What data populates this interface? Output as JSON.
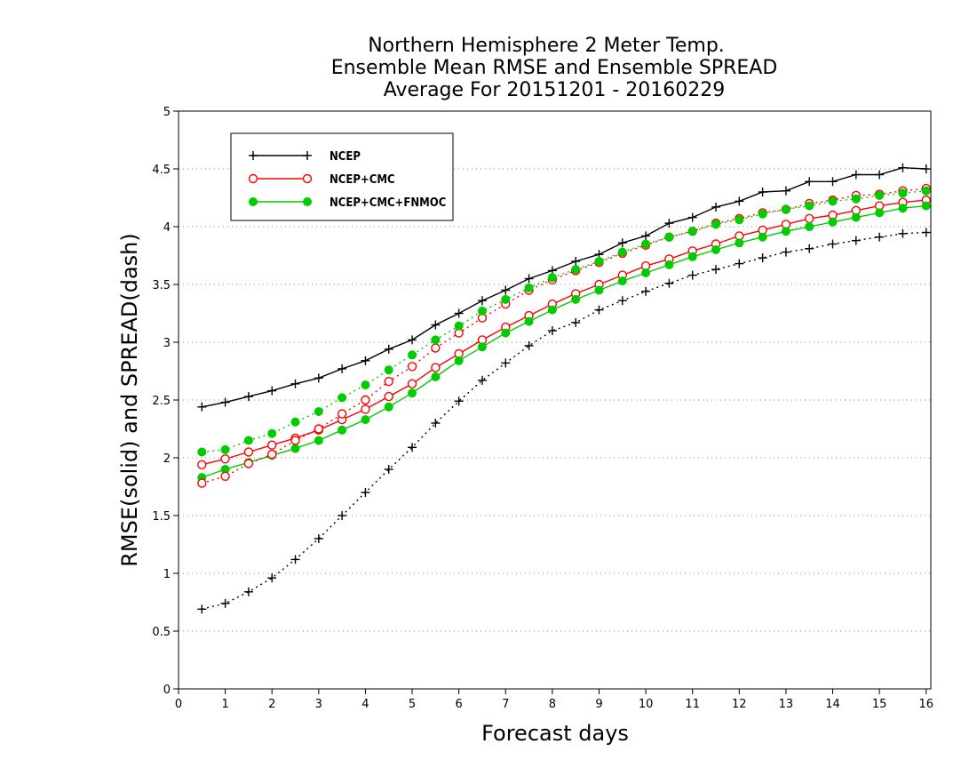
{
  "chart_data": {
    "type": "line",
    "title": [
      "Northern Hemisphere 2 Meter Temp.",
      "Ensemble Mean RMSE and Ensemble SPREAD",
      "Average For 20151201 - 20160229"
    ],
    "xlabel": "Forecast days",
    "ylabel": "RMSE(solid) and SPREAD(dash)",
    "xlim": [
      0,
      16.1
    ],
    "ylim": [
      0,
      5
    ],
    "xticks": [
      "0",
      "1",
      "2",
      "3",
      "4",
      "5",
      "6",
      "7",
      "8",
      "9",
      "10",
      "11",
      "12",
      "13",
      "14",
      "15",
      "16"
    ],
    "yticks": [
      "0",
      "0.5",
      "1",
      "1.5",
      "2",
      "2.5",
      "3",
      "3.5",
      "4",
      "4.5",
      "5"
    ],
    "grid": "horizontal dotted",
    "legend_position": "top-left",
    "x": [
      0.5,
      1,
      1.5,
      2,
      2.5,
      3,
      3.5,
      4,
      4.5,
      5,
      5.5,
      6,
      6.5,
      7,
      7.5,
      8,
      8.5,
      9,
      9.5,
      10,
      10.5,
      11,
      11.5,
      12,
      12.5,
      13,
      13.5,
      14,
      14.5,
      15,
      15.5,
      16
    ],
    "series": [
      {
        "name": "NCEP",
        "kind": "rmse",
        "color": "#000000",
        "marker": "plus",
        "values": [
          2.44,
          2.48,
          2.53,
          2.58,
          2.64,
          2.69,
          2.77,
          2.84,
          2.94,
          3.02,
          3.15,
          3.25,
          3.36,
          3.45,
          3.55,
          3.62,
          3.7,
          3.76,
          3.86,
          3.92,
          4.03,
          4.08,
          4.17,
          4.22,
          4.3,
          4.31,
          4.39,
          4.39,
          4.45,
          4.45,
          4.51,
          4.5
        ]
      },
      {
        "name": "NCEP+CMC",
        "kind": "rmse",
        "color": "#ff0000",
        "marker": "open-circle",
        "values": [
          1.94,
          1.99,
          2.05,
          2.11,
          2.17,
          2.24,
          2.33,
          2.42,
          2.53,
          2.64,
          2.78,
          2.9,
          3.02,
          3.13,
          3.23,
          3.33,
          3.42,
          3.5,
          3.58,
          3.66,
          3.72,
          3.79,
          3.85,
          3.92,
          3.97,
          4.02,
          4.07,
          4.1,
          4.14,
          4.18,
          4.21,
          4.23
        ]
      },
      {
        "name": "NCEP+CMC+FNMOC",
        "kind": "rmse",
        "color": "#00cc00",
        "marker": "filled-circle",
        "values": [
          1.83,
          1.9,
          1.96,
          2.02,
          2.08,
          2.15,
          2.24,
          2.33,
          2.44,
          2.56,
          2.7,
          2.84,
          2.96,
          3.08,
          3.18,
          3.28,
          3.37,
          3.45,
          3.53,
          3.6,
          3.67,
          3.74,
          3.8,
          3.86,
          3.91,
          3.96,
          4.0,
          4.04,
          4.08,
          4.12,
          4.16,
          4.18
        ]
      },
      {
        "name": "NCEP",
        "kind": "spread",
        "color": "#000000",
        "marker": "plus",
        "values": [
          0.69,
          0.74,
          0.84,
          0.96,
          1.12,
          1.3,
          1.5,
          1.7,
          1.9,
          2.09,
          2.3,
          2.49,
          2.67,
          2.82,
          2.97,
          3.1,
          3.17,
          3.28,
          3.36,
          3.44,
          3.51,
          3.58,
          3.63,
          3.68,
          3.73,
          3.78,
          3.81,
          3.85,
          3.88,
          3.91,
          3.94,
          3.95
        ]
      },
      {
        "name": "NCEP+CMC",
        "kind": "spread",
        "color": "#ff0000",
        "marker": "open-circle",
        "values": [
          1.78,
          1.84,
          1.95,
          2.03,
          2.15,
          2.25,
          2.38,
          2.5,
          2.66,
          2.79,
          2.95,
          3.08,
          3.21,
          3.33,
          3.45,
          3.54,
          3.62,
          3.69,
          3.77,
          3.84,
          3.91,
          3.96,
          4.03,
          4.07,
          4.12,
          4.15,
          4.2,
          4.23,
          4.27,
          4.28,
          4.31,
          4.33
        ]
      },
      {
        "name": "NCEP+CMC+FNMOC",
        "kind": "spread",
        "color": "#00cc00",
        "marker": "filled-circle",
        "values": [
          2.05,
          2.07,
          2.15,
          2.21,
          2.31,
          2.4,
          2.52,
          2.63,
          2.76,
          2.89,
          3.02,
          3.14,
          3.27,
          3.37,
          3.47,
          3.56,
          3.63,
          3.7,
          3.78,
          3.85,
          3.91,
          3.96,
          4.02,
          4.06,
          4.11,
          4.15,
          4.18,
          4.22,
          4.24,
          4.27,
          4.29,
          4.31
        ]
      }
    ],
    "legend": [
      {
        "label": "NCEP",
        "color": "#000000",
        "marker": "plus"
      },
      {
        "label": "NCEP+CMC",
        "color": "#ff0000",
        "marker": "open-circle"
      },
      {
        "label": "NCEP+CMC+FNMOC",
        "color": "#00cc00",
        "marker": "filled-circle"
      }
    ]
  }
}
